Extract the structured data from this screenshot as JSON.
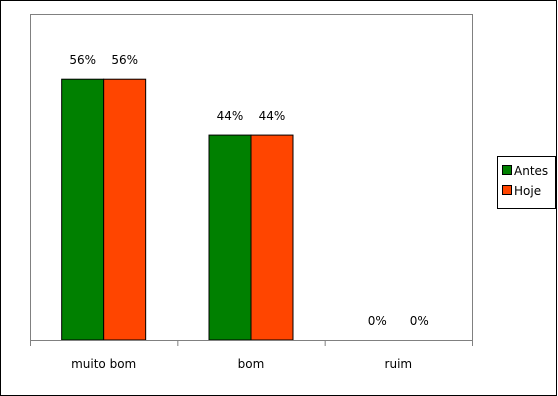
{
  "chart_data": {
    "type": "bar",
    "categories": [
      "muito bom",
      "bom",
      "ruim"
    ],
    "series": [
      {
        "name": "Antes",
        "values": [
          56,
          44,
          0
        ],
        "labels": [
          "56%",
          "44%",
          "0%"
        ],
        "color": "#008000"
      },
      {
        "name": "Hoje",
        "values": [
          56,
          44,
          0
        ],
        "labels": [
          "56%",
          "44%",
          "0%"
        ],
        "color": "#ff4500"
      }
    ],
    "ylim": [
      0,
      70
    ],
    "grid": false,
    "legend": "right",
    "plot_background": "#ffffff"
  }
}
